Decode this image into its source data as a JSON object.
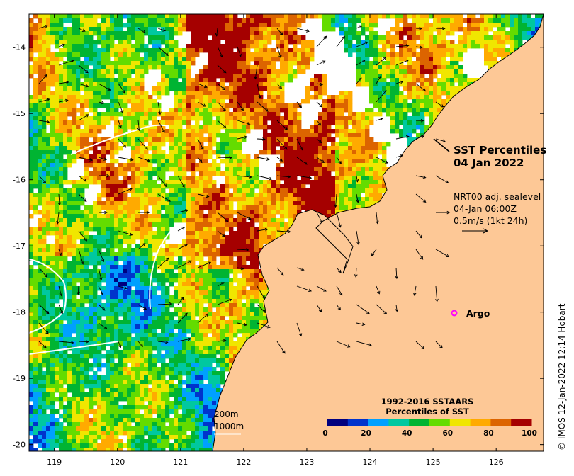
{
  "map": {
    "title_line1": "SST Percentiles",
    "title_line2": "04 Jan 2022",
    "current_product": "NRT00 adj. sealevel",
    "current_time": "04-Jan 06:00Z",
    "current_scale": "0.5m/s (1kt 24h)",
    "argo_label": "Argo",
    "argo_position": {
      "lon": 125.25,
      "lat": -18.0
    },
    "credit": "© IMOS 12-Jan-2022 12:14 Hobart",
    "depth_contours": [
      "200m",
      "1000m"
    ],
    "extent": {
      "lon_min": 118.6,
      "lon_max": 126.75,
      "lat_min": -20.1,
      "lat_max": -13.5
    },
    "lon_ticks": [
      "119",
      "120",
      "121",
      "122",
      "123",
      "124",
      "125",
      "126"
    ],
    "lat_ticks": [
      "-14",
      "-15",
      "-16",
      "-17",
      "-18",
      "-19",
      "-20"
    ],
    "land_color": "#fdc896"
  },
  "legend": {
    "title_line1": "1992-2016 SSTAARS",
    "title_line2": "Percentiles of SST",
    "tick_labels": [
      "0",
      "20",
      "40",
      "60",
      "80",
      "100"
    ],
    "colors": [
      "#00007f",
      "#0033cc",
      "#00a0ff",
      "#00c8a0",
      "#00b432",
      "#64dc00",
      "#f0e600",
      "#ffaa00",
      "#dc6400",
      "#a50000"
    ]
  }
}
